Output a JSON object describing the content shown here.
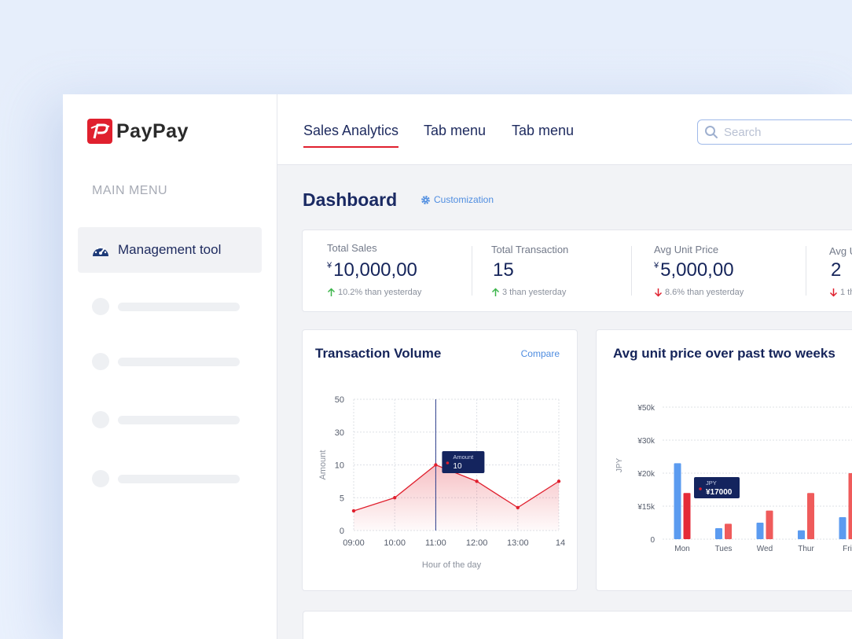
{
  "brand": {
    "name": "PayPay",
    "color": "#e0202e"
  },
  "sidebar": {
    "heading": "MAIN MENU",
    "active_item": {
      "label": "Management tool",
      "icon": "speedometer-icon"
    },
    "placeholder_count": 4
  },
  "topbar": {
    "tabs": [
      {
        "label": "Sales Analytics",
        "active": true
      },
      {
        "label": "Tab menu",
        "active": false
      },
      {
        "label": "Tab menu",
        "active": false
      }
    ],
    "search": {
      "placeholder": "Search",
      "value": "",
      "icon": "search-icon"
    }
  },
  "dashboard": {
    "title": "Dashboard",
    "customization_label": "Customization",
    "customization_icon": "gear-icon"
  },
  "kpis": [
    {
      "label": "Total Sales",
      "currency": "¥",
      "value": "10,000,00",
      "change": "10.2% than yesterday",
      "direction": "up"
    },
    {
      "label": "Total Transaction",
      "currency": "",
      "value": "15",
      "change": "3 than yesterday",
      "direction": "up"
    },
    {
      "label": "Avg Unit Price",
      "currency": "¥",
      "value": "5,000,00",
      "change": "8.6% than yesterday",
      "direction": "down"
    },
    {
      "label": "Avg U",
      "currency": "",
      "value": "2",
      "change": "1 th",
      "direction": "down"
    }
  ],
  "colors": {
    "up": "#3bb54a",
    "down": "#e0202e",
    "accent": "#4f8de0",
    "navy": "#1b2a63",
    "bar_blue": "#5b9bf0",
    "bar_red": "#ef5b5b"
  },
  "transaction_card": {
    "title": "Transaction Volume",
    "compare_label": "Compare",
    "tooltip": {
      "label": "Amount",
      "value": "10"
    }
  },
  "price_card": {
    "title": "Avg unit price over past two weeks",
    "tooltip": {
      "label": "JPY",
      "value": "¥17000"
    }
  },
  "chart_data": [
    {
      "type": "line",
      "title": "Transaction Volume",
      "xlabel": "Hour of the day",
      "ylabel": "Amount",
      "x": [
        "09:00",
        "10:00",
        "11:00",
        "12:00",
        "13:00",
        "14"
      ],
      "x_tick_labels": [
        "09:00",
        "10:00",
        "11:00",
        "12:00",
        "13:00",
        "14"
      ],
      "y_tick_labels": [
        "0",
        "5",
        "10",
        "30",
        "50"
      ],
      "series": [
        {
          "values": [
            3,
            5,
            10,
            7.5,
            3.5,
            7.5
          ]
        }
      ],
      "grid": true,
      "highlight_x": "11:00"
    },
    {
      "type": "bar",
      "title": "Avg unit price over past two weeks",
      "ylabel": "JPY",
      "categories": [
        "Mon",
        "Tues",
        "Wed",
        "Thur",
        "Fri"
      ],
      "y_tick_labels": [
        "0",
        "¥15k",
        "¥20k",
        "¥30k",
        "¥50k"
      ],
      "series": [
        {
          "values": [
            23000,
            5000,
            7500,
            4000,
            10000
          ]
        },
        {
          "values": [
            17000,
            7000,
            13000,
            17000,
            20000
          ]
        }
      ],
      "grid": true
    }
  ]
}
